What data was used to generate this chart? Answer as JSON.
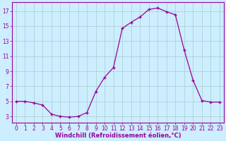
{
  "x": [
    0,
    1,
    2,
    3,
    4,
    5,
    6,
    7,
    8,
    9,
    10,
    11,
    12,
    13,
    14,
    15,
    16,
    17,
    18,
    19,
    20,
    21,
    22,
    23
  ],
  "y": [
    5.0,
    5.0,
    4.8,
    4.5,
    3.3,
    3.0,
    2.9,
    3.0,
    3.5,
    6.3,
    8.2,
    9.5,
    14.7,
    15.5,
    16.2,
    17.2,
    17.4,
    16.9,
    16.5,
    11.8,
    7.8,
    5.1,
    4.9,
    4.9
  ],
  "xlabel": "Windchill (Refroidissement éolien,°C)",
  "line_color": "#990099",
  "marker": "+",
  "bg_color": "#cceeff",
  "grid_color": "#aacccc",
  "xlim": [
    -0.5,
    23.5
  ],
  "ylim": [
    2.2,
    18.2
  ],
  "yticks": [
    3,
    5,
    7,
    9,
    11,
    13,
    15,
    17
  ],
  "xticks": [
    0,
    1,
    2,
    3,
    4,
    5,
    6,
    7,
    8,
    9,
    10,
    11,
    12,
    13,
    14,
    15,
    16,
    17,
    18,
    19,
    20,
    21,
    22,
    23
  ],
  "xlabel_fontsize": 6.0,
  "tick_fontsize": 5.5
}
